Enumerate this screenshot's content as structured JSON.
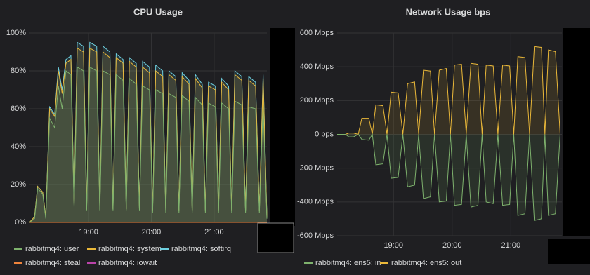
{
  "chart_data": [
    {
      "type": "line",
      "title": "CPU Usage",
      "fill": true,
      "grid": true,
      "legend_position": "bottom",
      "xlim": [
        18.06,
        21.84
      ],
      "xticks": [
        {
          "value": 19,
          "label": "19:00"
        },
        {
          "value": 20,
          "label": "20:00"
        },
        {
          "value": 21,
          "label": "21:00"
        }
      ],
      "ylim": [
        0,
        100
      ],
      "yticks": [
        {
          "value": 0,
          "label": "0%"
        },
        {
          "value": 20,
          "label": "20%"
        },
        {
          "value": 40,
          "label": "40%"
        },
        {
          "value": 60,
          "label": "60%"
        },
        {
          "value": 80,
          "label": "80%"
        },
        {
          "value": 100,
          "label": "100%"
        }
      ],
      "x": [
        18.06,
        18.14,
        18.19,
        18.27,
        18.32,
        18.38,
        18.46,
        18.52,
        18.58,
        18.64,
        18.72,
        18.77,
        18.82,
        18.92,
        18.97,
        19.02,
        19.13,
        19.18,
        19.23,
        19.34,
        19.39,
        19.44,
        19.55,
        19.6,
        19.65,
        19.76,
        19.81,
        19.86,
        19.97,
        20.02,
        20.07,
        20.18,
        20.23,
        20.28,
        20.39,
        20.44,
        20.49,
        20.6,
        20.65,
        20.7,
        20.81,
        20.86,
        20.91,
        21.02,
        21.07,
        21.12,
        21.23,
        21.28,
        21.33,
        21.44,
        21.5,
        21.55,
        21.66,
        21.72,
        21.78,
        21.84
      ],
      "series": [
        {
          "name": "rabbitmq4: user",
          "color": "#7eb26d",
          "values": [
            0,
            2,
            18,
            15,
            2,
            55,
            50,
            72,
            60,
            80,
            78,
            8,
            82,
            80,
            6,
            82,
            80,
            6,
            80,
            78,
            6,
            78,
            75,
            6,
            76,
            73,
            6,
            72,
            70,
            5,
            70,
            68,
            5,
            68,
            66,
            5,
            67,
            64,
            5,
            66,
            62,
            5,
            63,
            61,
            5,
            63,
            60,
            5,
            64,
            62,
            5,
            61,
            60,
            5,
            62,
            2
          ]
        },
        {
          "name": "rabbitmq4: system",
          "color": "#eab839",
          "values": [
            0,
            3,
            19,
            16,
            3,
            60,
            56,
            80,
            68,
            84,
            86,
            9,
            92,
            90,
            7,
            92,
            90,
            7,
            90,
            87,
            7,
            87,
            84,
            7,
            85,
            82,
            7,
            82,
            79,
            6,
            80,
            77,
            6,
            78,
            75,
            6,
            77,
            73,
            6,
            76,
            71,
            6,
            72,
            70,
            6,
            74,
            70,
            6,
            78,
            75,
            6,
            75,
            72,
            6,
            76,
            3
          ]
        },
        {
          "name": "rabbitmq4: softirq",
          "color": "#6ed0e0",
          "values": [
            0,
            3,
            19,
            16,
            3,
            61,
            57,
            82,
            70,
            86,
            88,
            9,
            95,
            93,
            7,
            95,
            93,
            7,
            93,
            90,
            7,
            89,
            86,
            7,
            87,
            84,
            7,
            85,
            82,
            6,
            83,
            80,
            6,
            80,
            77,
            6,
            79,
            75,
            6,
            78,
            73,
            6,
            74,
            72,
            6,
            76,
            72,
            6,
            80,
            77,
            6,
            77,
            74,
            6,
            78,
            3
          ]
        },
        {
          "name": "rabbitmq4: steal",
          "color": "#ef843c",
          "values": [
            0,
            0,
            0,
            0,
            0,
            0,
            0,
            0,
            0,
            0,
            0,
            0,
            0,
            0,
            0,
            0,
            0,
            0,
            0,
            0,
            0,
            0,
            0,
            0,
            0,
            0,
            0,
            0,
            0,
            0,
            0,
            0,
            0,
            0,
            0,
            0,
            0,
            0,
            0,
            0,
            0,
            0,
            0,
            0,
            0,
            0,
            0,
            0,
            0,
            0,
            0,
            0,
            0,
            0,
            0,
            0
          ]
        },
        {
          "name": "rabbitmq4: iowait",
          "color": "#ba43a9",
          "values": [
            0,
            0,
            0,
            0,
            0,
            0,
            0,
            0,
            0,
            0,
            0,
            0,
            0,
            0,
            0,
            0,
            0,
            0,
            0,
            0,
            0,
            0,
            0,
            0,
            0,
            0,
            0,
            0,
            0,
            0,
            0,
            0,
            0,
            0,
            0,
            0,
            0,
            0,
            0,
            0,
            0,
            0,
            0,
            0,
            0,
            0,
            0,
            0,
            0,
            0,
            0,
            0,
            0,
            0,
            0,
            0
          ]
        }
      ]
    },
    {
      "type": "line",
      "title": "Network Usage bps",
      "fill": true,
      "grid": true,
      "legend_position": "bottom",
      "xlim": [
        18.04,
        21.87
      ],
      "xticks": [
        {
          "value": 19,
          "label": "19:00"
        },
        {
          "value": 20,
          "label": "20:00"
        },
        {
          "value": 21,
          "label": "21:00"
        }
      ],
      "ylim": [
        -600,
        600
      ],
      "yticks": [
        {
          "value": 600,
          "label": "600 Mbps"
        },
        {
          "value": 400,
          "label": "400 Mbps"
        },
        {
          "value": 200,
          "label": "200 Mbps"
        },
        {
          "value": 0,
          "label": "0 bps"
        },
        {
          "value": -200,
          "label": "-200 Mbps"
        },
        {
          "value": -400,
          "label": "-400 Mbps"
        },
        {
          "value": -600,
          "label": "-600 Mbps"
        }
      ],
      "x": [
        18.04,
        18.18,
        18.24,
        18.32,
        18.4,
        18.46,
        18.58,
        18.64,
        18.7,
        18.82,
        18.89,
        18.96,
        19.08,
        19.16,
        19.24,
        19.36,
        19.43,
        19.51,
        19.63,
        19.7,
        19.78,
        19.9,
        19.97,
        20.04,
        20.16,
        20.24,
        20.32,
        20.44,
        20.51,
        20.58,
        20.7,
        20.78,
        20.86,
        20.98,
        21.05,
        21.12,
        21.24,
        21.32,
        21.4,
        21.52,
        21.58,
        21.64,
        21.76,
        21.84
      ],
      "series": [
        {
          "name": "rabbitmq4: ens5: in",
          "color": "#7eb26d",
          "values": [
            0,
            0,
            -15,
            -15,
            0,
            -30,
            -35,
            0,
            -180,
            -175,
            0,
            -260,
            -255,
            0,
            -310,
            -300,
            0,
            -380,
            -370,
            0,
            -400,
            -395,
            0,
            -420,
            -415,
            0,
            -430,
            -420,
            0,
            -400,
            -410,
            0,
            -420,
            -415,
            0,
            -480,
            -470,
            0,
            -510,
            -500,
            0,
            -480,
            -470,
            0
          ]
        },
        {
          "name": "rabbitmq4: ens5: out",
          "color": "#eab839",
          "values": [
            0,
            0,
            8,
            8,
            0,
            95,
            95,
            0,
            175,
            170,
            0,
            250,
            245,
            0,
            300,
            310,
            0,
            380,
            375,
            0,
            380,
            390,
            0,
            410,
            415,
            0,
            420,
            415,
            0,
            410,
            405,
            0,
            410,
            405,
            0,
            460,
            455,
            0,
            520,
            515,
            0,
            500,
            490,
            0
          ]
        }
      ]
    }
  ]
}
